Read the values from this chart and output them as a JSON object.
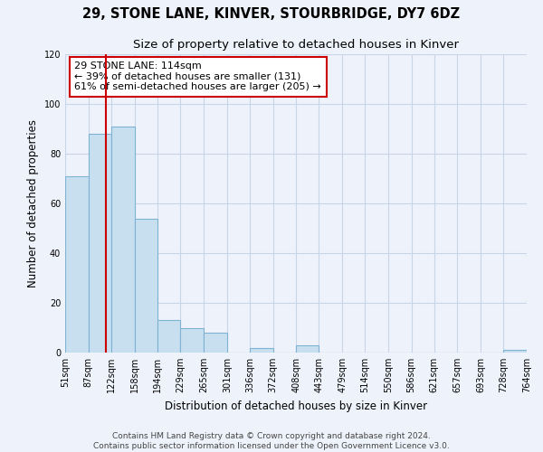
{
  "title": "29, STONE LANE, KINVER, STOURBRIDGE, DY7 6DZ",
  "subtitle": "Size of property relative to detached houses in Kinver",
  "xlabel": "Distribution of detached houses by size in Kinver",
  "ylabel": "Number of detached properties",
  "bin_edges": [
    51,
    87,
    122,
    158,
    194,
    229,
    265,
    301,
    336,
    372,
    408,
    443,
    479,
    514,
    550,
    586,
    621,
    657,
    693,
    728,
    764
  ],
  "bar_heights": [
    71,
    88,
    91,
    54,
    13,
    10,
    8,
    0,
    2,
    0,
    3,
    0,
    0,
    0,
    0,
    0,
    0,
    0,
    0,
    1
  ],
  "bar_color": "#c8dff0",
  "bar_edge_color": "#7fb3d3",
  "vline_x": 114,
  "vline_color": "#cc0000",
  "annotation_box_text": "29 STONE LANE: 114sqm\n← 39% of detached houses are smaller (131)\n61% of semi-detached houses are larger (205) →",
  "ylim": [
    0,
    120
  ],
  "yticks": [
    0,
    20,
    40,
    60,
    80,
    100,
    120
  ],
  "tick_labels": [
    "51sqm",
    "87sqm",
    "122sqm",
    "158sqm",
    "194sqm",
    "229sqm",
    "265sqm",
    "301sqm",
    "336sqm",
    "372sqm",
    "408sqm",
    "443sqm",
    "479sqm",
    "514sqm",
    "550sqm",
    "586sqm",
    "621sqm",
    "657sqm",
    "693sqm",
    "728sqm",
    "764sqm"
  ],
  "footer_text": "Contains HM Land Registry data © Crown copyright and database right 2024.\nContains public sector information licensed under the Open Government Licence v3.0.",
  "background_color": "#eef2fa",
  "grid_color": "#c8d4e8",
  "title_fontsize": 10.5,
  "subtitle_fontsize": 9.5,
  "axis_label_fontsize": 8.5,
  "tick_fontsize": 7,
  "footer_fontsize": 6.5,
  "annotation_fontsize": 8
}
